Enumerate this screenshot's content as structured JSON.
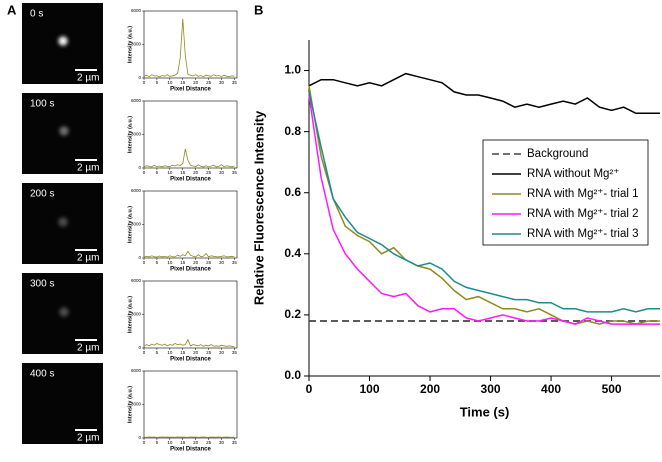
{
  "panels": {
    "a": "A",
    "b": "B"
  },
  "images": [
    {
      "time": "0 s",
      "scale": "2 µm"
    },
    {
      "time": "100 s",
      "scale": "2 µm"
    },
    {
      "time": "200 s",
      "scale": "2 µm"
    },
    {
      "time": "300 s",
      "scale": "2 µm"
    },
    {
      "time": "400 s",
      "scale": "2 µm"
    }
  ],
  "chart_data": [
    {
      "type": "line",
      "xlabel": "Pixel Distance",
      "ylabel": "Intensity (a.u.)",
      "x": [
        0,
        1,
        2,
        3,
        4,
        5,
        6,
        7,
        8,
        9,
        10,
        11,
        12,
        13,
        14,
        15,
        16,
        17,
        18,
        19,
        20,
        21,
        22,
        23,
        24,
        25,
        26,
        27,
        28,
        29,
        30,
        31,
        32,
        33,
        34,
        35
      ],
      "values": [
        150,
        250,
        120,
        300,
        180,
        200,
        100,
        220,
        160,
        300,
        140,
        200,
        260,
        400,
        1800,
        5300,
        2000,
        350,
        250,
        180,
        300,
        150,
        220,
        120,
        260,
        200,
        150,
        300,
        180,
        220,
        130,
        250,
        160,
        120,
        200,
        150
      ],
      "color": "#8f8a1e",
      "xlim": [
        0,
        36
      ],
      "xticks": [
        0,
        5,
        10,
        15,
        20,
        25,
        30,
        35
      ],
      "ylim": [
        0,
        6000
      ],
      "yticks": [
        0,
        3000,
        6000
      ]
    },
    {
      "type": "line",
      "xlabel": "Pixel Distance",
      "ylabel": "Intensity (a.u.)",
      "x": [
        0,
        1,
        2,
        3,
        4,
        5,
        6,
        7,
        8,
        9,
        10,
        11,
        12,
        13,
        14,
        15,
        16,
        17,
        18,
        19,
        20,
        21,
        22,
        23,
        24,
        25,
        26,
        27,
        28,
        29,
        30,
        31,
        32,
        33,
        34,
        35
      ],
      "values": [
        100,
        200,
        150,
        100,
        250,
        120,
        180,
        100,
        200,
        150,
        120,
        250,
        180,
        300,
        220,
        400,
        1700,
        700,
        250,
        180,
        120,
        300,
        150,
        100,
        200,
        120,
        180,
        250,
        100,
        150,
        300,
        120,
        200,
        150,
        100,
        180
      ],
      "color": "#8f8a1e",
      "xlim": [
        0,
        36
      ],
      "xticks": [
        0,
        5,
        10,
        15,
        20,
        25,
        30,
        35
      ],
      "ylim": [
        0,
        6000
      ],
      "yticks": [
        0,
        3000,
        6000
      ]
    },
    {
      "type": "line",
      "xlabel": "Pixel Distance",
      "ylabel": "Intensity (a.u.)",
      "x": [
        0,
        1,
        2,
        3,
        4,
        5,
        6,
        7,
        8,
        9,
        10,
        11,
        12,
        13,
        14,
        15,
        16,
        17,
        18,
        19,
        20,
        21,
        22,
        23,
        24,
        25,
        26,
        27,
        28,
        29,
        30,
        31,
        32,
        33,
        34,
        35
      ],
      "values": [
        80,
        150,
        100,
        200,
        120,
        90,
        180,
        100,
        150,
        80,
        200,
        120,
        100,
        250,
        150,
        300,
        200,
        600,
        250,
        150,
        100,
        300,
        120,
        150,
        400,
        100,
        200,
        150,
        120,
        100,
        150,
        200,
        100,
        120,
        150,
        100
      ],
      "color": "#8f8a1e",
      "xlim": [
        0,
        36
      ],
      "xticks": [
        0,
        5,
        10,
        15,
        20,
        25,
        30,
        35
      ],
      "ylim": [
        0,
        6000
      ],
      "yticks": [
        0,
        3000,
        6000
      ]
    },
    {
      "type": "line",
      "xlabel": "Pixel Distance",
      "ylabel": "Intensity (a.u.)",
      "x": [
        0,
        1,
        2,
        3,
        4,
        5,
        6,
        7,
        8,
        9,
        10,
        11,
        12,
        13,
        14,
        15,
        16,
        17,
        18,
        19,
        20,
        21,
        22,
        23,
        24,
        25,
        26,
        27,
        28,
        29,
        30,
        31,
        32,
        33,
        34,
        35
      ],
      "values": [
        150,
        300,
        200,
        350,
        250,
        400,
        300,
        250,
        350,
        200,
        300,
        250,
        400,
        300,
        350,
        250,
        300,
        750,
        200,
        300,
        250,
        200,
        300,
        150,
        250,
        200,
        300,
        150,
        200,
        150,
        250,
        200,
        150,
        200,
        150,
        100
      ],
      "color": "#8f8a1e",
      "xlim": [
        0,
        36
      ],
      "xticks": [
        0,
        5,
        10,
        15,
        20,
        25,
        30,
        35
      ],
      "ylim": [
        0,
        6000
      ],
      "yticks": [
        0,
        3000,
        6000
      ]
    },
    {
      "type": "line",
      "xlabel": "Pixel Distance",
      "ylabel": "Intensity (a.u.)",
      "x": [
        0,
        1,
        2,
        3,
        4,
        5,
        6,
        7,
        8,
        9,
        10,
        11,
        12,
        13,
        14,
        15,
        16,
        17,
        18,
        19,
        20,
        21,
        22,
        23,
        24,
        25,
        26,
        27,
        28,
        29,
        30,
        31,
        32,
        33,
        34,
        35
      ],
      "values": [
        80,
        60,
        100,
        70,
        90,
        50,
        80,
        100,
        60,
        90,
        70,
        80,
        60,
        100,
        70,
        90,
        80,
        60,
        100,
        70,
        90,
        60,
        80,
        100,
        70,
        60,
        90,
        80,
        70,
        100,
        60,
        80,
        90,
        70,
        60,
        80
      ],
      "color": "#8f8a1e",
      "xlim": [
        0,
        36
      ],
      "xticks": [
        0,
        5,
        10,
        15,
        20,
        25,
        30,
        35
      ],
      "ylim": [
        0,
        6000
      ],
      "yticks": [
        0,
        3000,
        6000
      ]
    },
    {
      "type": "line",
      "xlabel": "Time (s)",
      "ylabel": "Relative Fluorescence Intensity",
      "x": [
        0,
        20,
        40,
        60,
        80,
        100,
        120,
        140,
        160,
        180,
        200,
        220,
        240,
        260,
        280,
        300,
        320,
        340,
        360,
        380,
        400,
        420,
        440,
        460,
        480,
        500,
        520,
        540,
        560,
        580
      ],
      "xlim": [
        0,
        580
      ],
      "xticks": [
        0,
        100,
        200,
        300,
        400,
        500
      ],
      "ylim": [
        0,
        1.1
      ],
      "yticks": [
        {
          "value": 0,
          "label": "0.0"
        },
        0.2,
        0.4,
        0.6,
        0.8,
        {
          "value": 1,
          "label": "1.0"
        }
      ],
      "legend": "right",
      "series": [
        {
          "name": "Background",
          "color": "#444444",
          "dash": true,
          "values": [
            0.18,
            0.18,
            0.18,
            0.18,
            0.18,
            0.18,
            0.18,
            0.18,
            0.18,
            0.18,
            0.18,
            0.18,
            0.18,
            0.18,
            0.18,
            0.18,
            0.18,
            0.18,
            0.18,
            0.18,
            0.18,
            0.18,
            0.18,
            0.18,
            0.18,
            0.18,
            0.18,
            0.18,
            0.18,
            0.18
          ]
        },
        {
          "name": "RNA without Mg²⁺",
          "color": "#000000",
          "values": [
            0.95,
            0.97,
            0.97,
            0.96,
            0.95,
            0.96,
            0.95,
            0.97,
            0.99,
            0.98,
            0.97,
            0.96,
            0.93,
            0.92,
            0.92,
            0.91,
            0.9,
            0.88,
            0.89,
            0.88,
            0.89,
            0.9,
            0.89,
            0.91,
            0.88,
            0.87,
            0.88,
            0.86,
            0.86,
            0.86
          ]
        },
        {
          "name": "RNA with Mg²⁺- trial 1",
          "color": "#8f8a1e",
          "values": [
            0.95,
            0.72,
            0.58,
            0.49,
            0.46,
            0.44,
            0.4,
            0.42,
            0.38,
            0.36,
            0.35,
            0.32,
            0.28,
            0.25,
            0.26,
            0.24,
            0.22,
            0.22,
            0.21,
            0.22,
            0.2,
            0.18,
            0.17,
            0.18,
            0.17,
            0.18,
            0.18,
            0.17,
            0.18,
            0.18
          ]
        },
        {
          "name": "RNA with Mg²⁺- trial 2",
          "color": "#ff19ff",
          "values": [
            0.92,
            0.65,
            0.48,
            0.4,
            0.35,
            0.31,
            0.27,
            0.26,
            0.27,
            0.23,
            0.21,
            0.22,
            0.22,
            0.19,
            0.18,
            0.19,
            0.2,
            0.19,
            0.18,
            0.18,
            0.19,
            0.18,
            0.17,
            0.19,
            0.18,
            0.17,
            0.17,
            0.17,
            0.17,
            0.17
          ]
        },
        {
          "name": "RNA with Mg²⁺- trial 3",
          "color": "#1e8a8c",
          "values": [
            0.93,
            0.75,
            0.58,
            0.52,
            0.47,
            0.45,
            0.43,
            0.4,
            0.38,
            0.36,
            0.37,
            0.35,
            0.31,
            0.29,
            0.28,
            0.27,
            0.26,
            0.25,
            0.25,
            0.24,
            0.24,
            0.22,
            0.22,
            0.21,
            0.21,
            0.21,
            0.22,
            0.21,
            0.22,
            0.22
          ]
        }
      ]
    }
  ]
}
